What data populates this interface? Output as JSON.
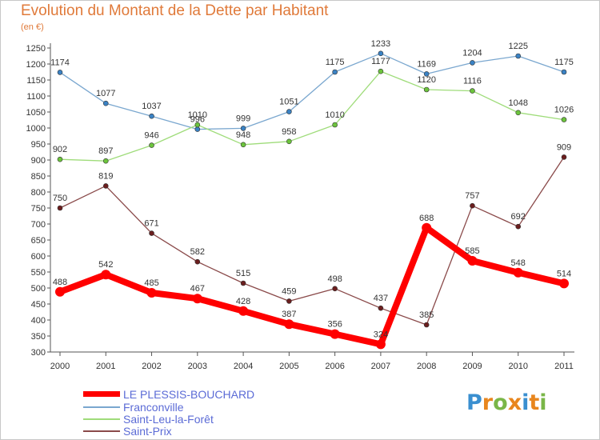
{
  "title": "Evolution du Montant de la Dette par Habitant",
  "unit_label": "(en €)",
  "logo": {
    "text": "Proxiti",
    "letters": [
      {
        "ch": "P",
        "color": "#3a8fd0"
      },
      {
        "ch": "r",
        "color": "#e8861e"
      },
      {
        "ch": "o",
        "color": "#7ab648"
      },
      {
        "ch": "x",
        "color": "#e8861e"
      },
      {
        "ch": "i",
        "color": "#3a8fd0"
      },
      {
        "ch": "t",
        "color": "#e8861e"
      },
      {
        "ch": "i",
        "color": "#7ab648"
      }
    ]
  },
  "chart_data": {
    "type": "line",
    "categories": [
      "2000",
      "2001",
      "2002",
      "2003",
      "2004",
      "2005",
      "2006",
      "2007",
      "2008",
      "2009",
      "2010",
      "2011"
    ],
    "ylim": [
      300,
      1250
    ],
    "yticks": [
      300,
      350,
      400,
      450,
      500,
      550,
      600,
      650,
      700,
      750,
      800,
      850,
      900,
      950,
      1000,
      1050,
      1100,
      1150,
      1200,
      1250
    ],
    "grid": false,
    "legend_position": "bottom-left",
    "series": [
      {
        "name": "LE PLESSIS-BOUCHARD",
        "color": "#ff0000",
        "point_color": "#ff0000",
        "bold": true,
        "values": [
          488,
          542,
          485,
          467,
          428,
          387,
          356,
          324,
          688,
          585,
          548,
          514
        ]
      },
      {
        "name": "Franconville",
        "color": "#7aa7cf",
        "point_color": "#3a82c4",
        "bold": false,
        "values": [
          1174,
          1077,
          1037,
          996,
          999,
          1051,
          1175,
          1233,
          1169,
          1204,
          1225,
          1175
        ]
      },
      {
        "name": "Saint-Leu-la-Forêt",
        "color": "#9fdc7a",
        "point_color": "#6cc43c",
        "bold": false,
        "values": [
          902,
          897,
          946,
          1010,
          948,
          958,
          1010,
          1177,
          1120,
          1116,
          1048,
          1026
        ]
      },
      {
        "name": "Saint-Prix",
        "color": "#8a4a4a",
        "point_color": "#6b1e1e",
        "bold": false,
        "values": [
          750,
          819,
          671,
          582,
          515,
          459,
          498,
          437,
          385,
          757,
          692,
          909
        ]
      }
    ]
  }
}
